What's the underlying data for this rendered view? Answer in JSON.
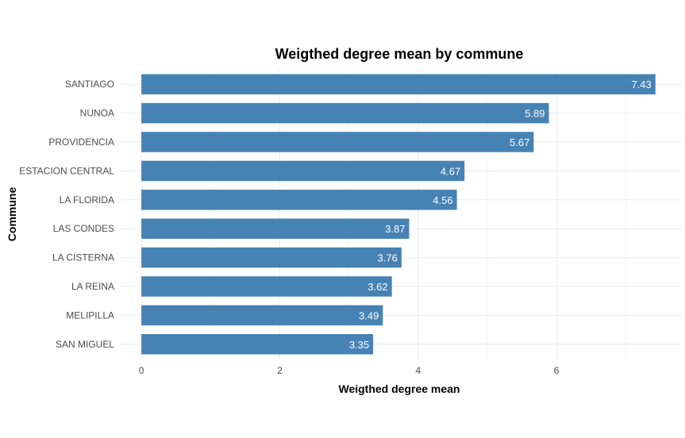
{
  "chart_data": {
    "type": "bar",
    "orientation": "horizontal",
    "title": "Weigthed degree mean by commune",
    "xlabel": "Weigthed degree mean",
    "ylabel": "Commune",
    "categories": [
      "SANTIAGO",
      "NUNOA",
      "PROVIDENCIA",
      "ESTACION CENTRAL",
      "LA FLORIDA",
      "LAS CONDES",
      "LA CISTERNA",
      "LA REINA",
      "MELIPILLA",
      "SAN MIGUEL"
    ],
    "values": [
      7.43,
      5.89,
      5.67,
      4.67,
      4.56,
      3.87,
      3.76,
      3.62,
      3.49,
      3.35
    ],
    "data_labels": [
      "7.43",
      "5.89",
      "5.67",
      "4.67",
      "4.56",
      "3.87",
      "3.76",
      "3.62",
      "3.49",
      "3.35"
    ],
    "x_ticks": [
      "0",
      "2",
      "4",
      "6"
    ],
    "xlim": [
      -0.3,
      7.8
    ],
    "bar_color": "#4682B4",
    "grid": true,
    "legend": false
  }
}
